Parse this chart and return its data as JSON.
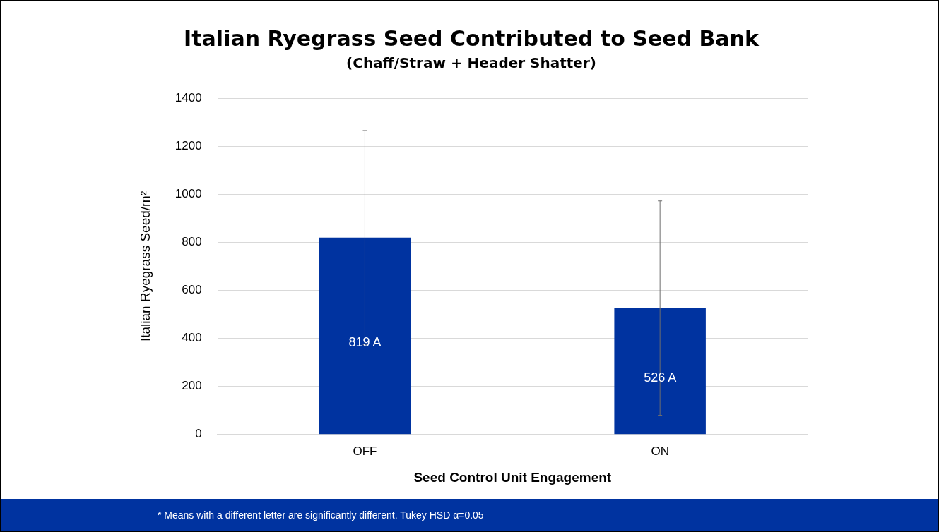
{
  "chart_data": {
    "type": "bar",
    "title": "Italian Ryegrass Seed Contributed to Seed Bank",
    "subtitle": "(Chaff/Straw + Header Shatter)",
    "xlabel": "Seed Control Unit Engagement",
    "ylabel": "Italian Ryegrass Seed/m²",
    "categories": [
      "OFF",
      "ON"
    ],
    "values": [
      819,
      526
    ],
    "color": "#0033a0",
    "errors": [
      446,
      446
    ],
    "value_labels": [
      "819 A",
      "526 A"
    ],
    "ylim": [
      0,
      1400
    ],
    "yticks": [
      0,
      200,
      400,
      600,
      800,
      1000,
      1200,
      1400
    ],
    "grid": "y",
    "legend": false,
    "annotations": [
      "* Means with a different letter are significantly different.  Tukey HSD α=0.05"
    ]
  }
}
